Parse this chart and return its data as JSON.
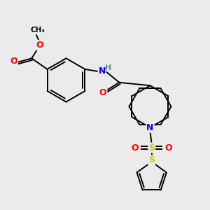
{
  "background_color": "#ebebeb",
  "bond_color": "#000000",
  "atom_colors": {
    "O": "#ff0000",
    "N": "#0000ff",
    "S": "#cccc00",
    "H": "#5a9090",
    "C": "#000000"
  },
  "figsize": [
    3.0,
    3.0
  ],
  "dpi": 100
}
